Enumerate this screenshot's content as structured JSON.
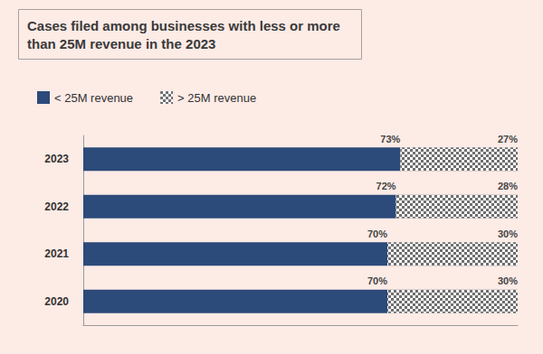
{
  "chart_data": {
    "type": "bar",
    "title": "Cases filed among businesses with less or more than 25M revenue in the 2023",
    "orientation": "horizontal",
    "stacked": true,
    "data_labels": true,
    "tick_labels": "y",
    "legend": "top-left",
    "grid": false,
    "categories": [
      "2023",
      "2022",
      "2021",
      "2020"
    ],
    "xlim": [
      0,
      100
    ],
    "series": [
      {
        "name": "< 25M revenue",
        "color": "#2c4a7a",
        "values": [
          73,
          72,
          70,
          70
        ],
        "value_labels": [
          "73%",
          "72%",
          "70%",
          "70%"
        ]
      },
      {
        "name": "> 25M revenue",
        "color": "#6e6e6e",
        "values": [
          27,
          28,
          30,
          30
        ],
        "value_labels": [
          "27%",
          "28%",
          "30%",
          "30%"
        ]
      }
    ]
  }
}
